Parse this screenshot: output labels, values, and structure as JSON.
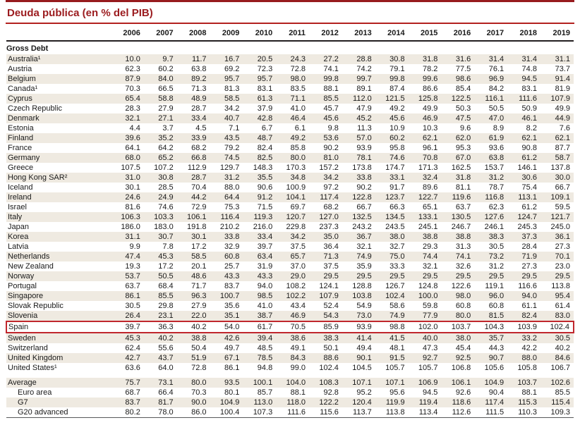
{
  "colors": {
    "title_red": "#9b1b1e",
    "top_rule_red": "#971b1e",
    "under_title_rule_red": "#b3201e",
    "stripe_beige": "#efeae1",
    "highlight_border_red": "#c0272d",
    "header_rule_dark": "#231f20"
  },
  "chart_data": {
    "type": "table",
    "title": "Deuda pública (en % del PIB)",
    "section": "Gross Debt",
    "columns": [
      "2006",
      "2007",
      "2008",
      "2009",
      "2010",
      "2011",
      "2012",
      "2013",
      "2014",
      "2015",
      "2016",
      "2017",
      "2018",
      "2019"
    ],
    "rows": [
      {
        "label": "Australia¹",
        "values": [
          "10.0",
          "9.7",
          "11.7",
          "16.7",
          "20.5",
          "24.3",
          "27.2",
          "28.8",
          "30.8",
          "31.8",
          "31.6",
          "31.4",
          "31.4",
          "31.1"
        ]
      },
      {
        "label": "Austria",
        "values": [
          "62.3",
          "60.2",
          "63.8",
          "69.2",
          "72.3",
          "72.8",
          "74.1",
          "74.2",
          "79.1",
          "78.2",
          "77.5",
          "76.1",
          "74.8",
          "73.7"
        ]
      },
      {
        "label": "Belgium",
        "values": [
          "87.9",
          "84.0",
          "89.2",
          "95.7",
          "95.7",
          "98.0",
          "99.8",
          "99.7",
          "99.8",
          "99.6",
          "98.6",
          "96.9",
          "94.5",
          "91.4"
        ]
      },
      {
        "label": "Canada¹",
        "values": [
          "70.3",
          "66.5",
          "71.3",
          "81.3",
          "83.1",
          "83.5",
          "88.1",
          "89.1",
          "87.4",
          "86.6",
          "85.4",
          "84.2",
          "83.1",
          "81.9"
        ]
      },
      {
        "label": "Cyprus",
        "values": [
          "65.4",
          "58.8",
          "48.9",
          "58.5",
          "61.3",
          "71.1",
          "85.5",
          "112.0",
          "121.5",
          "125.8",
          "122.5",
          "116.1",
          "111.6",
          "107.9"
        ]
      },
      {
        "label": "Czech Republic",
        "values": [
          "28.3",
          "27.9",
          "28.7",
          "34.2",
          "37.9",
          "41.0",
          "45.7",
          "47.9",
          "49.2",
          "49.9",
          "50.3",
          "50.5",
          "50.9",
          "49.9"
        ]
      },
      {
        "label": "Denmark",
        "values": [
          "32.1",
          "27.1",
          "33.4",
          "40.7",
          "42.8",
          "46.4",
          "45.6",
          "45.2",
          "45.6",
          "46.9",
          "47.5",
          "47.0",
          "46.1",
          "44.9"
        ]
      },
      {
        "label": "Estonia",
        "values": [
          "4.4",
          "3.7",
          "4.5",
          "7.1",
          "6.7",
          "6.1",
          "9.8",
          "11.3",
          "10.9",
          "10.3",
          "9.6",
          "8.9",
          "8.2",
          "7.6"
        ]
      },
      {
        "label": "Finland",
        "values": [
          "39.6",
          "35.2",
          "33.9",
          "43.5",
          "48.7",
          "49.2",
          "53.6",
          "57.0",
          "60.2",
          "62.1",
          "62.0",
          "61.9",
          "62.1",
          "62.1"
        ]
      },
      {
        "label": "France",
        "values": [
          "64.1",
          "64.2",
          "68.2",
          "79.2",
          "82.4",
          "85.8",
          "90.2",
          "93.9",
          "95.8",
          "96.1",
          "95.3",
          "93.6",
          "90.8",
          "87.7"
        ]
      },
      {
        "label": "Germany",
        "values": [
          "68.0",
          "65.2",
          "66.8",
          "74.5",
          "82.5",
          "80.0",
          "81.0",
          "78.1",
          "74.6",
          "70.8",
          "67.0",
          "63.8",
          "61.2",
          "58.7"
        ]
      },
      {
        "label": "Greece",
        "values": [
          "107.5",
          "107.2",
          "112.9",
          "129.7",
          "148.3",
          "170.3",
          "157.2",
          "173.8",
          "174.7",
          "171.3",
          "162.5",
          "153.7",
          "146.1",
          "137.8"
        ]
      },
      {
        "label": "Hong Kong SAR²",
        "values": [
          "31.0",
          "30.8",
          "28.7",
          "31.2",
          "35.5",
          "34.8",
          "34.2",
          "33.8",
          "33.1",
          "32.4",
          "31.8",
          "31.2",
          "30.6",
          "30.0"
        ]
      },
      {
        "label": "Iceland",
        "values": [
          "30.1",
          "28.5",
          "70.4",
          "88.0",
          "90.6",
          "100.9",
          "97.2",
          "90.2",
          "91.7",
          "89.6",
          "81.1",
          "78.7",
          "75.4",
          "66.7"
        ]
      },
      {
        "label": "Ireland",
        "values": [
          "24.6",
          "24.9",
          "44.2",
          "64.4",
          "91.2",
          "104.1",
          "117.4",
          "122.8",
          "123.7",
          "122.7",
          "119.6",
          "116.8",
          "113.1",
          "109.1"
        ]
      },
      {
        "label": "Israel",
        "values": [
          "81.6",
          "74.6",
          "72.9",
          "75.3",
          "71.5",
          "69.7",
          "68.2",
          "66.7",
          "66.3",
          "65.1",
          "63.7",
          "62.3",
          "61.2",
          "59.5"
        ]
      },
      {
        "label": "Italy",
        "values": [
          "106.3",
          "103.3",
          "106.1",
          "116.4",
          "119.3",
          "120.7",
          "127.0",
          "132.5",
          "134.5",
          "133.1",
          "130.5",
          "127.6",
          "124.7",
          "121.7"
        ]
      },
      {
        "label": "Japan",
        "values": [
          "186.0",
          "183.0",
          "191.8",
          "210.2",
          "216.0",
          "229.8",
          "237.3",
          "243.2",
          "243.5",
          "245.1",
          "246.7",
          "246.1",
          "245.3",
          "245.0"
        ]
      },
      {
        "label": "Korea",
        "values": [
          "31.1",
          "30.7",
          "30.1",
          "33.8",
          "33.4",
          "34.2",
          "35.0",
          "36.7",
          "38.0",
          "38.8",
          "38.8",
          "38.3",
          "37.3",
          "36.1"
        ]
      },
      {
        "label": "Latvia",
        "values": [
          "9.9",
          "7.8",
          "17.2",
          "32.9",
          "39.7",
          "37.5",
          "36.4",
          "32.1",
          "32.7",
          "29.3",
          "31.3",
          "30.5",
          "28.4",
          "27.3"
        ]
      },
      {
        "label": "Netherlands",
        "values": [
          "47.4",
          "45.3",
          "58.5",
          "60.8",
          "63.4",
          "65.7",
          "71.3",
          "74.9",
          "75.0",
          "74.4",
          "74.1",
          "73.2",
          "71.9",
          "70.1"
        ]
      },
      {
        "label": "New Zealand",
        "values": [
          "19.3",
          "17.2",
          "20.1",
          "25.7",
          "31.9",
          "37.0",
          "37.5",
          "35.9",
          "33.3",
          "32.1",
          "32.6",
          "31.2",
          "27.3",
          "23.0"
        ]
      },
      {
        "label": "Norway",
        "values": [
          "53.7",
          "50.5",
          "48.6",
          "43.3",
          "43.3",
          "29.0",
          "29.5",
          "29.5",
          "29.5",
          "29.5",
          "29.5",
          "29.5",
          "29.5",
          "29.5"
        ]
      },
      {
        "label": "Portugal",
        "values": [
          "63.7",
          "68.4",
          "71.7",
          "83.7",
          "94.0",
          "108.2",
          "124.1",
          "128.8",
          "126.7",
          "124.8",
          "122.6",
          "119.1",
          "116.6",
          "113.8"
        ]
      },
      {
        "label": "Singapore",
        "values": [
          "86.1",
          "85.5",
          "96.3",
          "100.7",
          "98.5",
          "102.2",
          "107.9",
          "103.8",
          "102.4",
          "100.0",
          "98.0",
          "96.0",
          "94.0",
          "95.4"
        ]
      },
      {
        "label": "Slovak Republic",
        "values": [
          "30.5",
          "29.8",
          "27.9",
          "35.6",
          "41.0",
          "43.4",
          "52.4",
          "54.9",
          "58.6",
          "59.8",
          "60.8",
          "60.8",
          "61.1",
          "61.4"
        ]
      },
      {
        "label": "Slovenia",
        "values": [
          "26.4",
          "23.1",
          "22.0",
          "35.1",
          "38.7",
          "46.9",
          "54.3",
          "73.0",
          "74.9",
          "77.9",
          "80.0",
          "81.5",
          "82.4",
          "83.0"
        ]
      },
      {
        "label": "Spain",
        "highlight": true,
        "values": [
          "39.7",
          "36.3",
          "40.2",
          "54.0",
          "61.7",
          "70.5",
          "85.9",
          "93.9",
          "98.8",
          "102.0",
          "103.7",
          "104.3",
          "103.9",
          "102.4"
        ]
      },
      {
        "label": "Sweden",
        "values": [
          "45.3",
          "40.2",
          "38.8",
          "42.6",
          "39.4",
          "38.6",
          "38.3",
          "41.4",
          "41.5",
          "40.0",
          "38.0",
          "35.7",
          "33.2",
          "30.5"
        ]
      },
      {
        "label": "Switzerland",
        "values": [
          "62.4",
          "55.6",
          "50.4",
          "49.7",
          "48.5",
          "49.1",
          "50.1",
          "49.4",
          "48.1",
          "47.3",
          "45.4",
          "44.3",
          "42.2",
          "40.2"
        ]
      },
      {
        "label": "United Kingdom",
        "values": [
          "42.7",
          "43.7",
          "51.9",
          "67.1",
          "78.5",
          "84.3",
          "88.6",
          "90.1",
          "91.5",
          "92.7",
          "92.5",
          "90.7",
          "88.0",
          "84.6"
        ]
      },
      {
        "label": "United States¹",
        "values": [
          "63.6",
          "64.0",
          "72.8",
          "86.1",
          "94.8",
          "99.0",
          "102.4",
          "104.5",
          "105.7",
          "105.7",
          "106.8",
          "105.6",
          "105.8",
          "106.7"
        ]
      }
    ],
    "summary_rows": [
      {
        "label": "Average",
        "indent": false,
        "values": [
          "75.7",
          "73.1",
          "80.0",
          "93.5",
          "100.1",
          "104.0",
          "108.3",
          "107.1",
          "107.1",
          "106.9",
          "106.1",
          "104.9",
          "103.7",
          "102.6"
        ]
      },
      {
        "label": "Euro area",
        "indent": true,
        "values": [
          "68.7",
          "66.4",
          "70.3",
          "80.1",
          "85.7",
          "88.1",
          "92.8",
          "95.2",
          "95.6",
          "94.5",
          "92.6",
          "90.4",
          "88.1",
          "85.5"
        ]
      },
      {
        "label": "G7",
        "indent": true,
        "values": [
          "83.7",
          "81.7",
          "90.0",
          "104.9",
          "113.0",
          "118.0",
          "122.2",
          "120.4",
          "119.9",
          "119.4",
          "118.6",
          "117.4",
          "115.3",
          "115.4"
        ]
      },
      {
        "label": "G20 advanced",
        "indent": true,
        "values": [
          "80.2",
          "78.0",
          "86.0",
          "100.4",
          "107.3",
          "111.6",
          "115.6",
          "113.7",
          "113.8",
          "113.4",
          "112.6",
          "111.5",
          "110.3",
          "109.3"
        ]
      }
    ]
  }
}
